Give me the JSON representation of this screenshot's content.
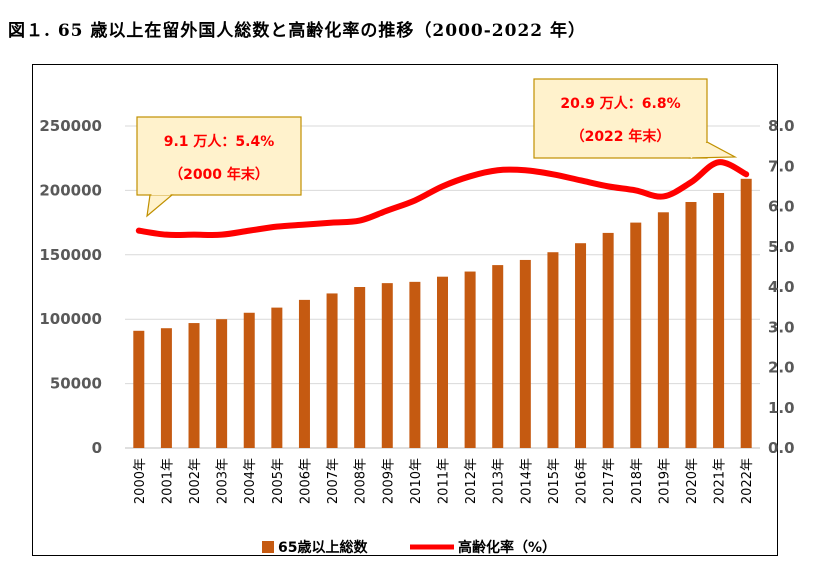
{
  "title": "図１. 65 歳以上在留外国人総数と高齢化率の推移（2000-2022 年）",
  "chart_data": {
    "type": "bar+line",
    "categories": [
      "2000年",
      "2001年",
      "2002年",
      "2003年",
      "2004年",
      "2005年",
      "2006年",
      "2007年",
      "2008年",
      "2009年",
      "2010年",
      "2011年",
      "2012年",
      "2013年",
      "2014年",
      "2015年",
      "2016年",
      "2017年",
      "2018年",
      "2019年",
      "2020年",
      "2021年",
      "2022年"
    ],
    "series": [
      {
        "name": "65歳以上総数",
        "type": "bar",
        "axis": "left",
        "color": "#c55a11",
        "values": [
          91000,
          93000,
          97000,
          100000,
          105000,
          109000,
          115000,
          120000,
          125000,
          128000,
          129000,
          133000,
          137000,
          142000,
          146000,
          152000,
          159000,
          167000,
          175000,
          183000,
          191000,
          198000,
          209000
        ]
      },
      {
        "name": "高齢化率（%）",
        "type": "line",
        "axis": "right",
        "color": "#ff0000",
        "values": [
          5.4,
          5.3,
          5.3,
          5.3,
          5.4,
          5.5,
          5.55,
          5.6,
          5.65,
          5.9,
          6.15,
          6.5,
          6.75,
          6.9,
          6.9,
          6.8,
          6.65,
          6.5,
          6.4,
          6.25,
          6.6,
          7.1,
          6.8
        ]
      }
    ],
    "y_left": {
      "min": 0,
      "max": 250000,
      "ticks": [
        "0",
        "50000",
        "100000",
        "150000",
        "200000",
        "250000"
      ]
    },
    "y_right": {
      "min": 0,
      "max": 8.0,
      "ticks": [
        "0.0",
        "1.0",
        "2.0",
        "3.0",
        "4.0",
        "5.0",
        "6.0",
        "7.0",
        "8.0"
      ]
    },
    "grid": true,
    "legend_position": "bottom",
    "annotations": [
      {
        "line1": "9.1 万人：5.4%",
        "line2": "（2000 年末）",
        "point_index": 0
      },
      {
        "line1": "20.9 万人：6.8%",
        "line2": "（2022 年末）",
        "point_index": 22
      }
    ]
  },
  "colors": {
    "bar": "#c55a11",
    "line": "#ff0000",
    "callout_fill": "#fff2cc",
    "callout_border": "#c09000",
    "grid": "#d9d9d9",
    "axis_text": "#595959"
  }
}
